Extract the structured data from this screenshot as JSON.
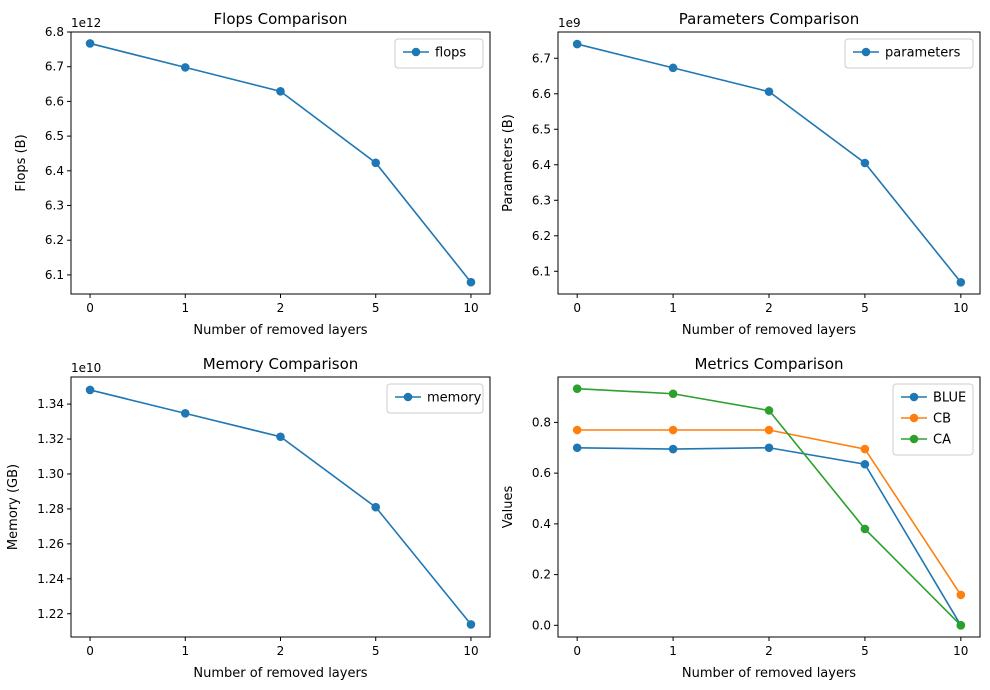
{
  "chart_data": [
    {
      "type": "line",
      "title": "Flops Comparison",
      "xlabel": "Number of removed layers",
      "ylabel": "Flops (B)",
      "offset_label": "1e12",
      "categories": [
        "0",
        "1",
        "2",
        "5",
        "10"
      ],
      "ylim": [
        6.045,
        6.8
      ],
      "yticks": [
        6.1,
        6.2,
        6.3,
        6.4,
        6.5,
        6.6,
        6.7,
        6.8
      ],
      "ytick_decimals": 1,
      "legend_position": "top-right",
      "series": [
        {
          "name": "flops",
          "color": "#1f77b4",
          "values": [
            6.767,
            6.698,
            6.629,
            6.423,
            6.079
          ]
        }
      ]
    },
    {
      "type": "line",
      "title": "Parameters Comparison",
      "xlabel": "Number of removed layers",
      "ylabel": "Parameters (B)",
      "offset_label": "1e9",
      "categories": [
        "0",
        "1",
        "2",
        "5",
        "10"
      ],
      "ylim": [
        6.036,
        6.774
      ],
      "yticks": [
        6.1,
        6.2,
        6.3,
        6.4,
        6.5,
        6.6,
        6.7
      ],
      "ytick_decimals": 1,
      "legend_position": "top-right",
      "series": [
        {
          "name": "parameters",
          "color": "#1f77b4",
          "values": [
            6.74,
            6.673,
            6.606,
            6.405,
            6.069
          ]
        }
      ]
    },
    {
      "type": "line",
      "title": "Memory Comparison",
      "xlabel": "Number of removed layers",
      "ylabel": "Memory (GB)",
      "offset_label": "1e10",
      "categories": [
        "0",
        "1",
        "2",
        "5",
        "10"
      ],
      "ylim": [
        1.2067,
        1.3555
      ],
      "yticks": [
        1.22,
        1.24,
        1.26,
        1.28,
        1.3,
        1.32,
        1.34
      ],
      "ytick_decimals": 2,
      "legend_position": "top-right",
      "series": [
        {
          "name": "memory",
          "color": "#1f77b4",
          "values": [
            1.3481,
            1.3347,
            1.3213,
            1.281,
            1.2139
          ]
        }
      ]
    },
    {
      "type": "line",
      "title": "Metrics Comparison",
      "xlabel": "Number of removed layers",
      "ylabel": "Values",
      "offset_label": "",
      "categories": [
        "0",
        "1",
        "2",
        "5",
        "10"
      ],
      "ylim": [
        -0.046,
        0.979
      ],
      "yticks": [
        0.0,
        0.2,
        0.4,
        0.6,
        0.8
      ],
      "ytick_decimals": 1,
      "legend_position": "top-right",
      "series": [
        {
          "name": "BLUE",
          "color": "#1f77b4",
          "values": [
            0.7,
            0.695,
            0.7,
            0.635,
            0.0
          ]
        },
        {
          "name": "CB",
          "color": "#ff7f0e",
          "values": [
            0.77,
            0.77,
            0.77,
            0.695,
            0.12
          ]
        },
        {
          "name": "CA",
          "color": "#2ca02c",
          "values": [
            0.933,
            0.913,
            0.847,
            0.38,
            0.0
          ]
        }
      ]
    }
  ]
}
